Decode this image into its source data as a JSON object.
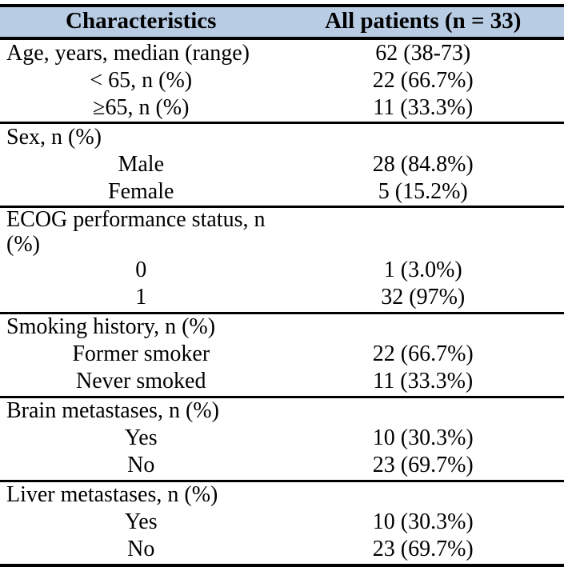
{
  "table": {
    "title_semantic": "Patient baseline characteristics table",
    "header_bg_color": "#b8cce4",
    "border_color": "#000000",
    "columns": [
      "Characteristics",
      "All patients (n = 33)"
    ],
    "sections": [
      {
        "rows": [
          {
            "label": "Age, years, median (range)",
            "value": "62 (38-73)",
            "indent": false
          },
          {
            "label": "< 65, n (%)",
            "value": "22 (66.7%)",
            "indent": true
          },
          {
            "label": "≥65, n (%)",
            "value": "11 (33.3%)",
            "indent": true
          }
        ]
      },
      {
        "rows": [
          {
            "label": "Sex, n (%)",
            "value": "",
            "indent": false
          },
          {
            "label": "Male",
            "value": "28 (84.8%)",
            "indent": true
          },
          {
            "label": "Female",
            "value": "5 (15.2%)",
            "indent": true
          }
        ]
      },
      {
        "rows": [
          {
            "label": "ECOG performance status, n (%)",
            "value": "",
            "indent": false
          },
          {
            "label": "0",
            "value": "1 (3.0%)",
            "indent": true
          },
          {
            "label": "1",
            "value": "32 (97%)",
            "indent": true
          }
        ]
      },
      {
        "rows": [
          {
            "label": "Smoking history, n (%)",
            "value": "",
            "indent": false
          },
          {
            "label": "Former smoker",
            "value": "22 (66.7%)",
            "indent": true
          },
          {
            "label": "Never smoked",
            "value": "11 (33.3%)",
            "indent": true
          }
        ]
      },
      {
        "rows": [
          {
            "label": "Brain metastases, n (%)",
            "value": "",
            "indent": false
          },
          {
            "label": "Yes",
            "value": "10 (30.3%)",
            "indent": true
          },
          {
            "label": "No",
            "value": "23 (69.7%)",
            "indent": true
          }
        ]
      },
      {
        "rows": [
          {
            "label": "Liver metastases, n (%)",
            "value": "",
            "indent": false
          },
          {
            "label": "Yes",
            "value": "10 (30.3%)",
            "indent": true
          },
          {
            "label": "No",
            "value": "23 (69.7%)",
            "indent": true
          }
        ]
      }
    ]
  }
}
